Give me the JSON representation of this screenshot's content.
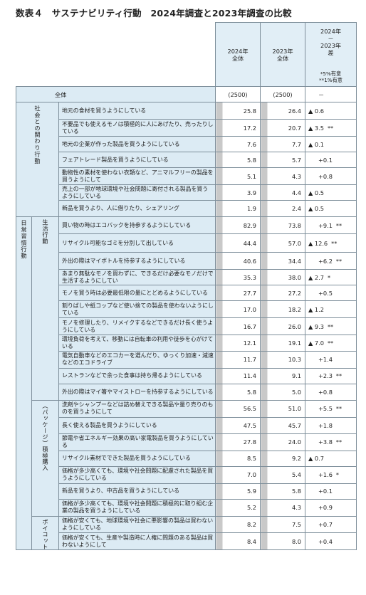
{
  "title": "数表４　サステナビリティ行動　2024年調査と2023年調査の比較",
  "header": {
    "col_2024": "2024年\n全体",
    "col_2023": "2023年\n全体",
    "col_diff": "2024年\n－\n2023年\n差",
    "note1": "*5%有意",
    "note2": "**1%有意"
  },
  "total_row": {
    "label": "全体",
    "v2024": "(2500)",
    "v2023": "(2500)",
    "diff": "－"
  },
  "sections": [
    {
      "label": "社会との関わり行動"
    },
    {
      "label": "日常習慣行動"
    }
  ],
  "subsections": [
    {
      "label": "生活行動"
    },
    {
      "label": "（パッケージ）積極購入"
    },
    {
      "label": "ボイコット"
    }
  ],
  "rows": [
    {
      "label": "地元の食材を買うようにしている",
      "v2024": "25.8",
      "v2023": "26.4",
      "diff": "▲ 0.6",
      "sig": ""
    },
    {
      "label": "不要品でも使えるモノは積極的に人にあげたり、売ったりしている",
      "v2024": "17.2",
      "v2023": "20.7",
      "diff": "▲ 3.5",
      "sig": "**"
    },
    {
      "label": "地元の企業が作った製品を買うようにしている",
      "v2024": "7.6",
      "v2023": "7.7",
      "diff": "▲ 0.1",
      "sig": ""
    },
    {
      "label": "フェアトレード製品を買うようにしている",
      "v2024": "5.8",
      "v2023": "5.7",
      "diff": "+0.1",
      "sig": ""
    },
    {
      "label": "動物性の素材を使わない衣類など、アニマルフリーの製品を買うようにして",
      "v2024": "5.1",
      "v2023": "4.3",
      "diff": "+0.8",
      "sig": ""
    },
    {
      "label": "売上の一部が地球環境や社会問題に寄付される製品を買うようにしている",
      "v2024": "3.9",
      "v2023": "4.4",
      "diff": "▲ 0.5",
      "sig": ""
    },
    {
      "label": "新品を買うより、人に借りたり、シェアリング",
      "v2024": "1.9",
      "v2023": "2.4",
      "diff": "▲ 0.5",
      "sig": ""
    },
    {
      "label": "買い物の時はエコバックを持参するようにしている",
      "v2024": "82.9",
      "v2023": "73.8",
      "diff": "+9.1",
      "sig": "**"
    },
    {
      "label": "リサイクル可能なゴミを分別して出している",
      "v2024": "44.4",
      "v2023": "57.0",
      "diff": "▲ 12.6",
      "sig": "**"
    },
    {
      "label": "外出の際はマイボトルを持参するようにしている",
      "v2024": "40.6",
      "v2023": "34.4",
      "diff": "+6.2",
      "sig": "**"
    },
    {
      "label": "あまり無駄なモノを買わずに、できるだけ必要なモノだけで生活するようにしてい",
      "v2024": "35.3",
      "v2023": "38.0",
      "diff": "▲ 2.7",
      "sig": "*"
    },
    {
      "label": "モノを買う時は必要最低限の量にとどめるようにしている",
      "v2024": "27.7",
      "v2023": "27.2",
      "diff": "+0.5",
      "sig": ""
    },
    {
      "label": "割りばしや紙コップなど使い捨ての製品を使わないようにしている",
      "v2024": "17.0",
      "v2023": "18.2",
      "diff": "▲ 1.2",
      "sig": ""
    },
    {
      "label": "モノを修理したり、リメイクするなどできるだけ長く使うようにしている",
      "v2024": "16.7",
      "v2023": "26.0",
      "diff": "▲ 9.3",
      "sig": "**"
    },
    {
      "label": "環境負荷を考えて、移動には自転車の利用や徒歩を心がけている",
      "v2024": "12.1",
      "v2023": "19.1",
      "diff": "▲ 7.0",
      "sig": "**"
    },
    {
      "label": "電気自動車などのエコカーを選んだり、ゆっくり加速・減速などのエコドライブ",
      "v2024": "11.7",
      "v2023": "10.3",
      "diff": "+1.4",
      "sig": ""
    },
    {
      "label": "レストランなどで余った食事は持ち帰るようにしている",
      "v2024": "11.4",
      "v2023": "9.1",
      "diff": "+2.3",
      "sig": "**"
    },
    {
      "label": "外出の際はマイ箸やマイストローを持参するようにしている",
      "v2024": "5.8",
      "v2023": "5.0",
      "diff": "+0.8",
      "sig": ""
    },
    {
      "label": "洗剤やシャンプーなどは詰め替えできる製品や量り売りのものを買うようにして",
      "v2024": "56.5",
      "v2023": "51.0",
      "diff": "+5.5",
      "sig": "**"
    },
    {
      "label": "長く使える製品を買うようにしている",
      "v2024": "47.5",
      "v2023": "45.7",
      "diff": "+1.8",
      "sig": ""
    },
    {
      "label": "節電や省エネルギー効果の高い家電製品を買うようにしている",
      "v2024": "27.8",
      "v2023": "24.0",
      "diff": "+3.8",
      "sig": "**"
    },
    {
      "label": "リサイクル素材でできた製品を買うようにしている",
      "v2024": "8.5",
      "v2023": "9.2",
      "diff": "▲ 0.7",
      "sig": ""
    },
    {
      "label": "価格が多少高くても、環境や社会問題に配慮された製品を買うようにしている",
      "v2024": "7.0",
      "v2023": "5.4",
      "diff": "+1.6",
      "sig": "*"
    },
    {
      "label": "新品を買うより、中古品を買うようにしている",
      "v2024": "5.9",
      "v2023": "5.8",
      "diff": "+0.1",
      "sig": ""
    },
    {
      "label": "価格が多少高くても、環境や社会問題に積極的に取り組む企業の製品を買うようにしている",
      "v2024": "5.2",
      "v2023": "4.3",
      "diff": "+0.9",
      "sig": ""
    },
    {
      "label": "価格が安くても、地球環境や社会に悪影響の製品は買わないようにしている",
      "v2024": "8.2",
      "v2023": "7.5",
      "diff": "+0.7",
      "sig": ""
    },
    {
      "label": "価格が安くても、生産や製造時に人権に問題のある製品は買わないようにして",
      "v2024": "8.4",
      "v2023": "8.0",
      "diff": "+0.4",
      "sig": ""
    }
  ]
}
